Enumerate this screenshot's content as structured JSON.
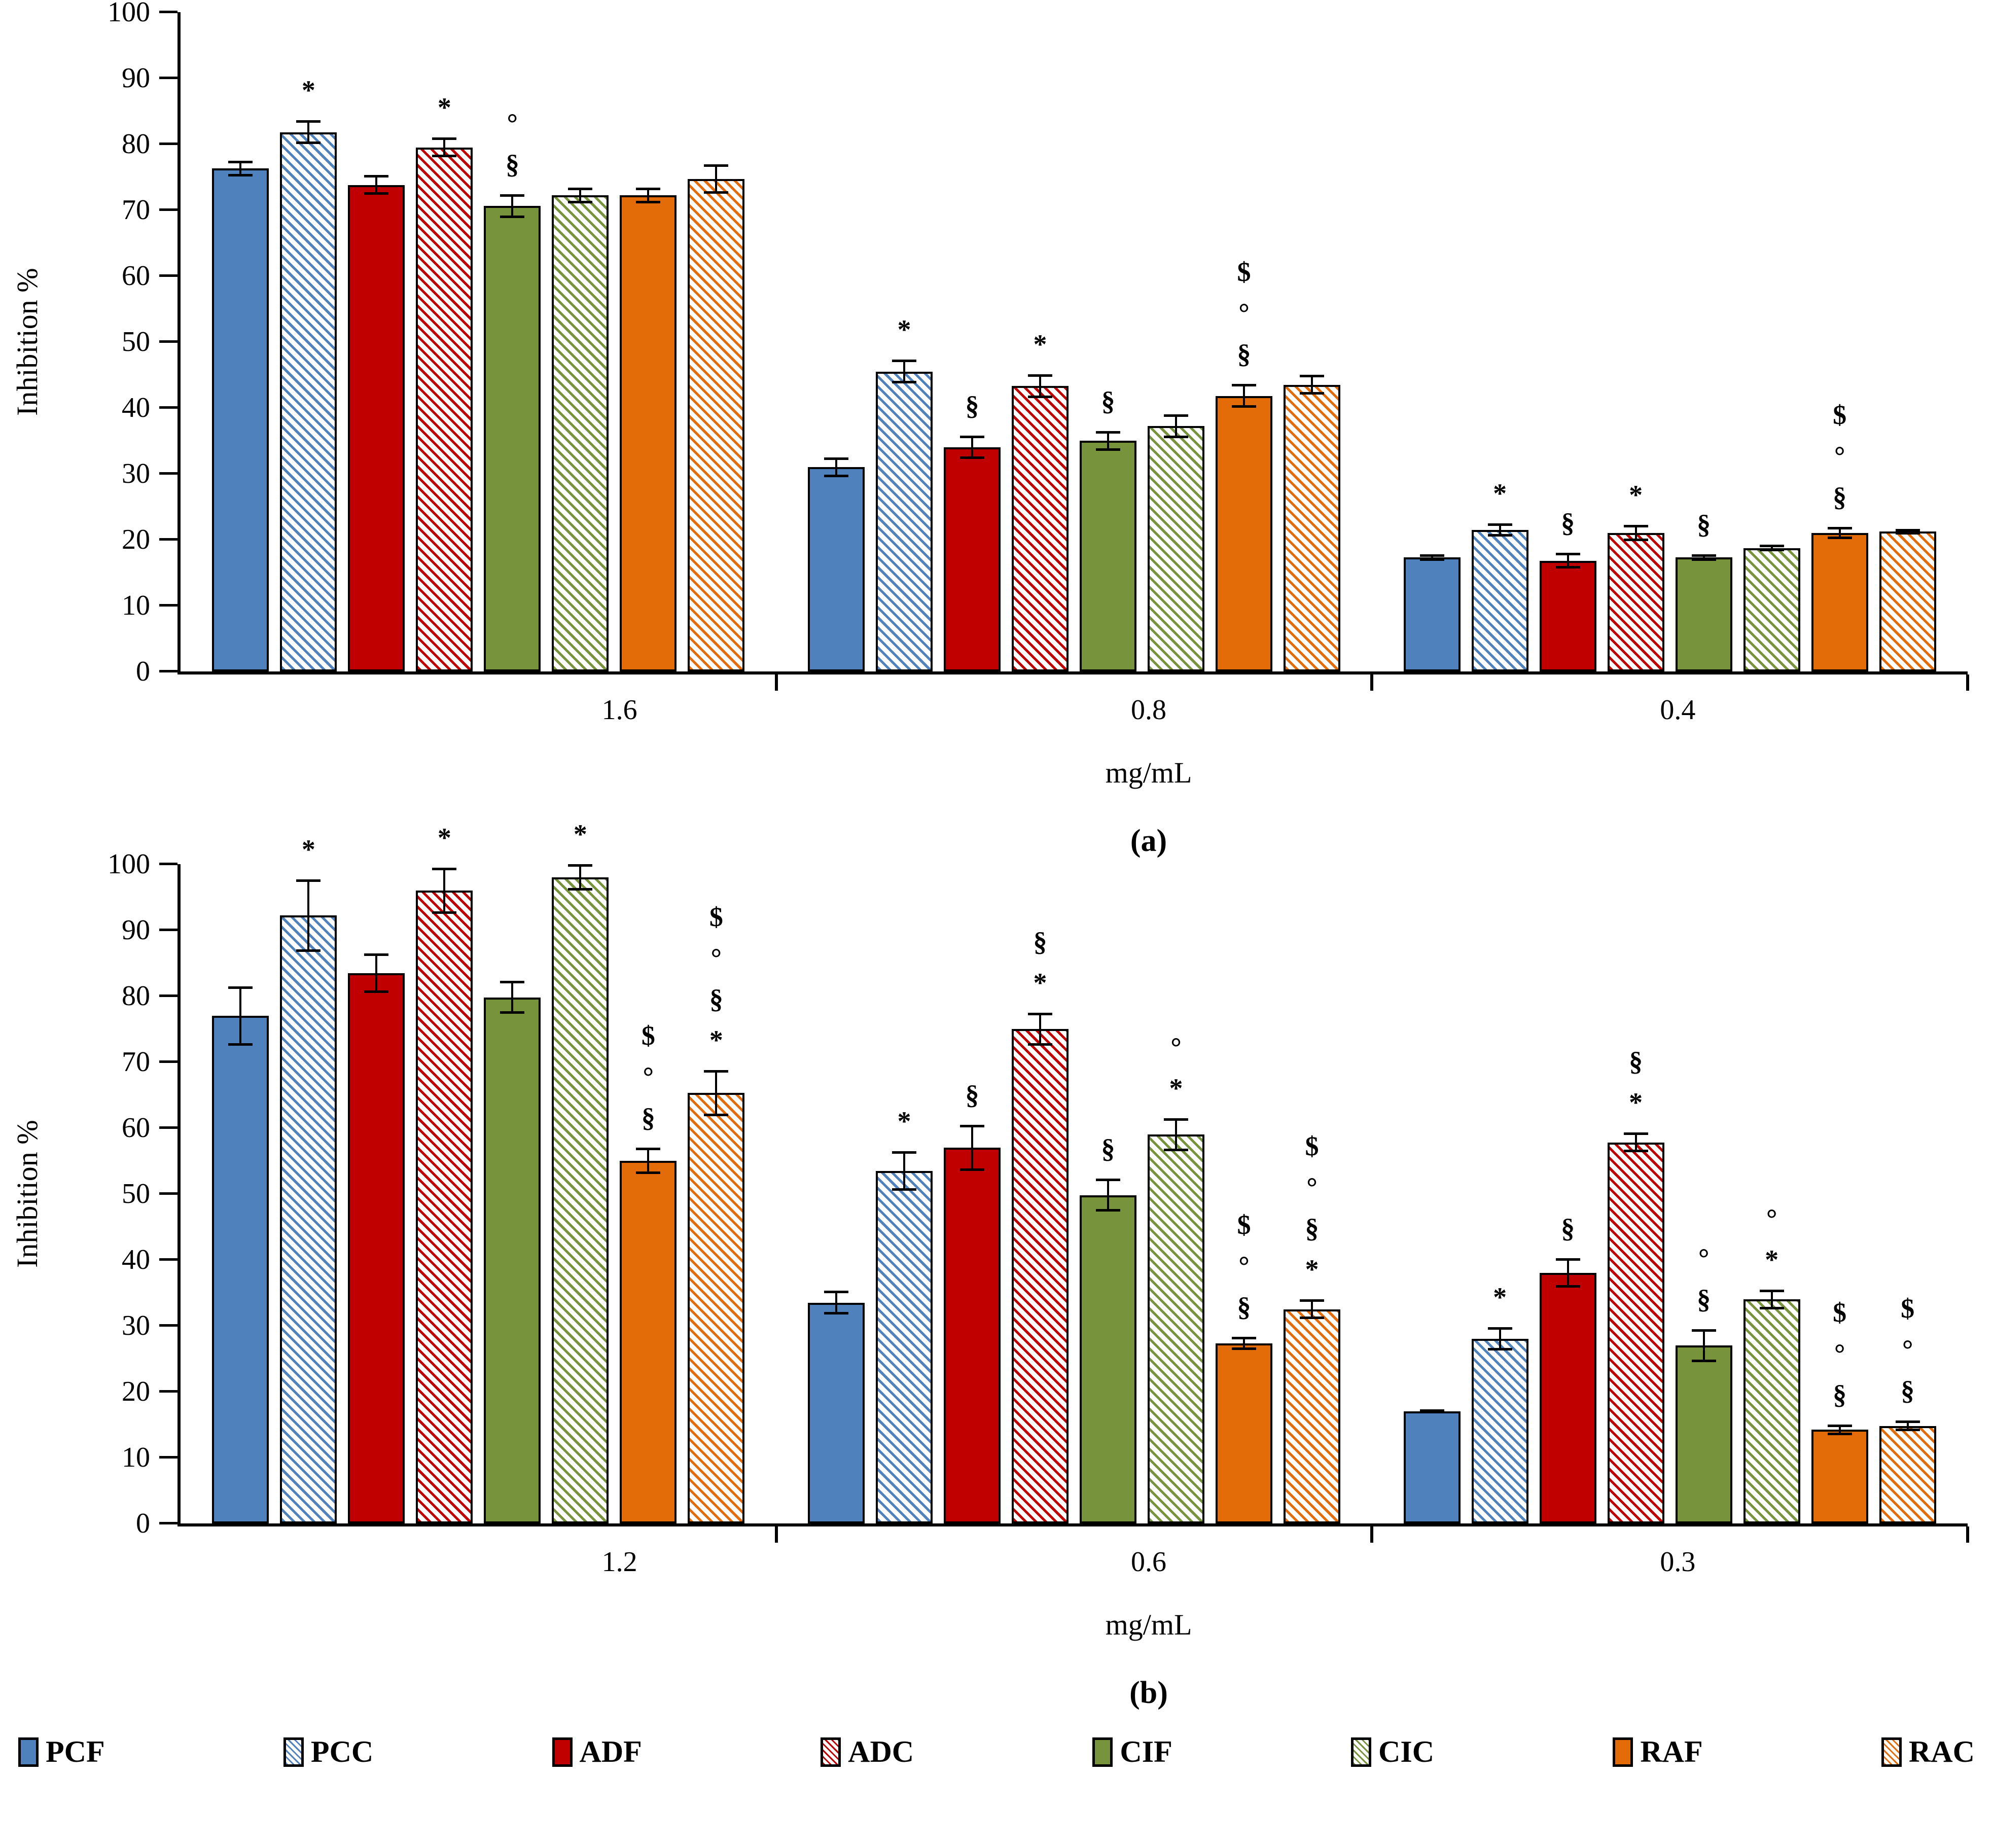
{
  "figure": {
    "background": "#ffffff",
    "colors": {
      "blue": "#4F81BD",
      "red": "#C00000",
      "green": "#77933C",
      "orange": "#E36C09"
    },
    "legend": [
      {
        "label": "PCF",
        "color": "#4F81BD",
        "pattern": "solid"
      },
      {
        "label": "PCC",
        "color": "#4F81BD",
        "pattern": "hatch"
      },
      {
        "label": "ADF",
        "color": "#C00000",
        "pattern": "solid"
      },
      {
        "label": "ADC",
        "color": "#C00000",
        "pattern": "hatch"
      },
      {
        "label": "CIF",
        "color": "#77933C",
        "pattern": "solid"
      },
      {
        "label": "CIC",
        "color": "#77933C",
        "pattern": "hatch"
      },
      {
        "label": "RAF",
        "color": "#E36C09",
        "pattern": "solid"
      },
      {
        "label": "RAC",
        "color": "#E36C09",
        "pattern": "hatch"
      }
    ]
  },
  "chart_data": [
    {
      "id": "a",
      "type": "bar",
      "caption": "(a)",
      "xlabel": "mg/mL",
      "ylabel": "Inhibition %",
      "ylim": [
        0,
        100
      ],
      "ytick_step": 10,
      "grid": false,
      "legend_position": "bottom",
      "categories": [
        "1.6",
        "0.8",
        "0.4"
      ],
      "series": [
        {
          "name": "PCF",
          "pattern": "solid",
          "color": "#4F81BD",
          "values": [
            76.3,
            31.0,
            17.3
          ],
          "errors": [
            1.2,
            1.5,
            0.5
          ],
          "annotations": [
            [],
            [],
            []
          ]
        },
        {
          "name": "PCC",
          "pattern": "hatch",
          "color": "#4F81BD",
          "values": [
            81.8,
            45.5,
            21.5
          ],
          "errors": [
            1.8,
            1.8,
            1.0
          ],
          "annotations": [
            [
              "*"
            ],
            [
              "*"
            ],
            [
              "*"
            ]
          ]
        },
        {
          "name": "ADF",
          "pattern": "solid",
          "color": "#C00000",
          "values": [
            73.8,
            34.0,
            16.8
          ],
          "errors": [
            1.5,
            1.8,
            1.2
          ],
          "annotations": [
            [],
            [
              "§"
            ],
            [
              "§"
            ]
          ]
        },
        {
          "name": "ADC",
          "pattern": "hatch",
          "color": "#C00000",
          "values": [
            79.5,
            43.3,
            21.0
          ],
          "errors": [
            1.5,
            1.8,
            1.2
          ],
          "annotations": [
            [
              "*"
            ],
            [
              "*"
            ],
            [
              "*"
            ]
          ]
        },
        {
          "name": "CIF",
          "pattern": "solid",
          "color": "#77933C",
          "values": [
            70.6,
            35.0,
            17.3
          ],
          "errors": [
            1.8,
            1.5,
            0.5
          ],
          "annotations": [
            [
              "°",
              "§"
            ],
            [
              "§"
            ],
            [
              "§"
            ]
          ]
        },
        {
          "name": "CIC",
          "pattern": "hatch",
          "color": "#77933C",
          "values": [
            72.2,
            37.2,
            18.7
          ],
          "errors": [
            1.2,
            1.8,
            0.5
          ],
          "annotations": [
            [],
            [],
            []
          ]
        },
        {
          "name": "RAF",
          "pattern": "solid",
          "color": "#E36C09",
          "values": [
            72.2,
            41.8,
            21.0
          ],
          "errors": [
            1.2,
            1.8,
            0.9
          ],
          "annotations": [
            [],
            [
              "$",
              "°",
              "§"
            ],
            [
              "$",
              "°",
              "§"
            ]
          ]
        },
        {
          "name": "RAC",
          "pattern": "hatch",
          "color": "#E36C09",
          "values": [
            74.7,
            43.5,
            21.2
          ],
          "errors": [
            2.2,
            1.5,
            0.4
          ],
          "annotations": [
            [],
            [],
            []
          ]
        }
      ]
    },
    {
      "id": "b",
      "type": "bar",
      "caption": "(b)",
      "xlabel": "mg/mL",
      "ylabel": "Inhibition %",
      "ylim": [
        0,
        100
      ],
      "ytick_step": 10,
      "grid": false,
      "legend_position": "bottom",
      "categories": [
        "1.2",
        "0.6",
        "0.3"
      ],
      "series": [
        {
          "name": "PCF",
          "pattern": "solid",
          "color": "#4F81BD",
          "values": [
            77.0,
            33.5,
            17.0
          ],
          "errors": [
            4.5,
            1.8,
            0.3
          ],
          "annotations": [
            [],
            [],
            []
          ]
        },
        {
          "name": "PCC",
          "pattern": "hatch",
          "color": "#4F81BD",
          "values": [
            92.2,
            53.5,
            28.0
          ],
          "errors": [
            5.5,
            3.0,
            1.8
          ],
          "annotations": [
            [
              "*"
            ],
            [
              "*"
            ],
            [
              "*"
            ]
          ]
        },
        {
          "name": "ADF",
          "pattern": "solid",
          "color": "#C00000",
          "values": [
            83.5,
            57.0,
            38.0
          ],
          "errors": [
            3.0,
            3.5,
            2.2
          ],
          "annotations": [
            [],
            [
              "§"
            ],
            [
              "§"
            ]
          ]
        },
        {
          "name": "ADC",
          "pattern": "hatch",
          "color": "#C00000",
          "values": [
            96.0,
            75.0,
            57.8
          ],
          "errors": [
            3.5,
            2.5,
            1.5
          ],
          "annotations": [
            [
              "*"
            ],
            [
              "§",
              "*"
            ],
            [
              "§",
              "*"
            ]
          ]
        },
        {
          "name": "CIF",
          "pattern": "solid",
          "color": "#77933C",
          "values": [
            79.8,
            49.8,
            27.0
          ],
          "errors": [
            2.5,
            2.5,
            2.5
          ],
          "annotations": [
            [],
            [
              "§"
            ],
            [
              "°",
              "§"
            ]
          ]
        },
        {
          "name": "CIC",
          "pattern": "hatch",
          "color": "#77933C",
          "values": [
            98.0,
            59.0,
            34.0
          ],
          "errors": [
            2.0,
            2.5,
            1.5
          ],
          "annotations": [
            [
              "*"
            ],
            [
              "°",
              "*"
            ],
            [
              "°",
              "*"
            ]
          ]
        },
        {
          "name": "RAF",
          "pattern": "solid",
          "color": "#E36C09",
          "values": [
            55.0,
            27.3,
            14.2
          ],
          "errors": [
            2.0,
            1.0,
            0.8
          ],
          "annotations": [
            [
              "$",
              "°",
              "§"
            ],
            [
              "$",
              "°",
              "§"
            ],
            [
              "$",
              "°",
              "§"
            ]
          ]
        },
        {
          "name": "RAC",
          "pattern": "hatch",
          "color": "#E36C09",
          "values": [
            65.3,
            32.5,
            14.8
          ],
          "errors": [
            3.5,
            1.5,
            0.8
          ],
          "annotations": [
            [
              "$",
              "°",
              "§",
              "*"
            ],
            [
              "$",
              "°",
              "§",
              "*"
            ],
            [
              "$",
              "°",
              "§"
            ]
          ]
        }
      ]
    }
  ]
}
